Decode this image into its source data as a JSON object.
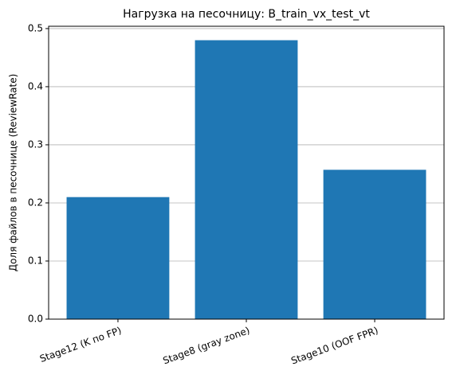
{
  "chart_data": {
    "type": "bar",
    "title": "Нагрузка на песочницу: B_train_vx_test_vt",
    "y_label": "Доля файлов в песочнице (ReviewRate)",
    "categories": [
      "Stage12 (K по FP)",
      "Stage8 (gray zone)",
      "Stage10 (OOF FPR)"
    ],
    "values": [
      0.21,
      0.48,
      0.257
    ],
    "color": "#1f77b4",
    "ylim": [
      0,
      0.504
    ],
    "yticks": [
      {
        "value": 0,
        "label": "0.0"
      },
      0.1,
      0.2,
      0.3,
      0.4,
      0.5
    ],
    "grid": true
  }
}
